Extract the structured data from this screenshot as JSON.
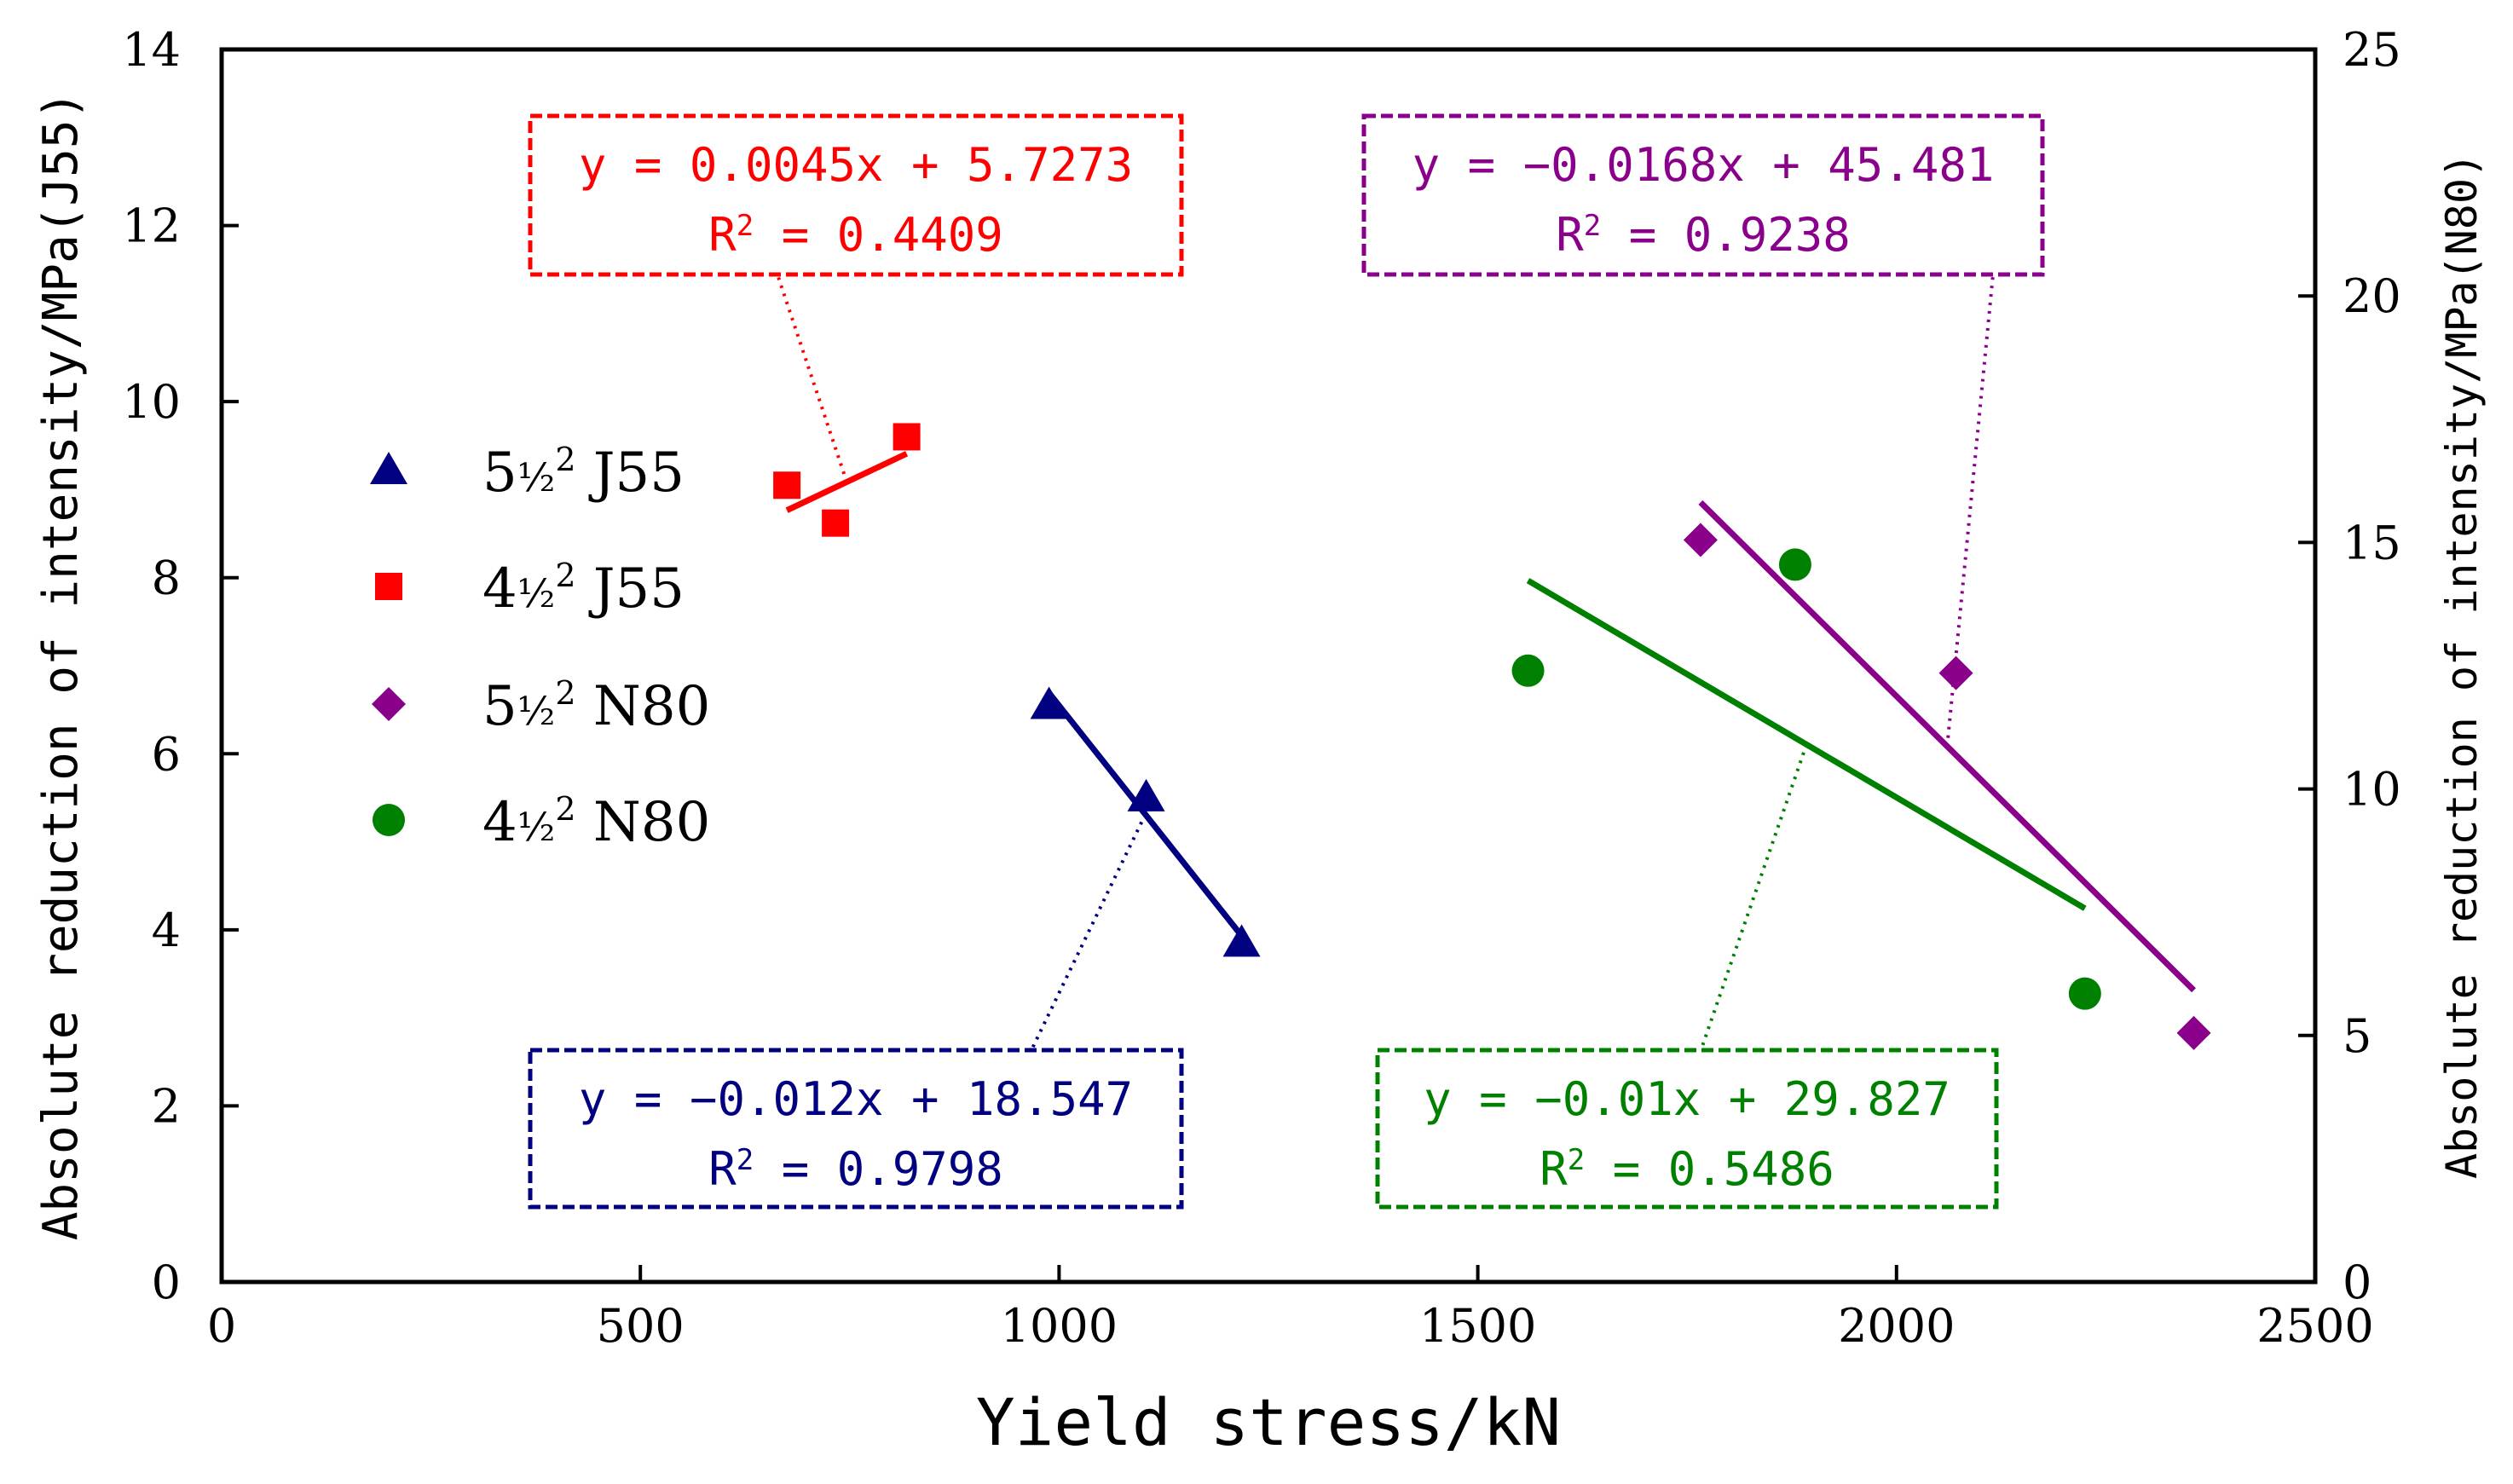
{
  "chart_data": {
    "type": "scatter",
    "xlabel": "Yield stress/kN",
    "ylabel_left": "Absolute reduction of intensity/MPa(J55)",
    "ylabel_right": "Absolute reduction of intensity/MPa(N80)",
    "xlim": [
      0,
      2500
    ],
    "ylim_left": [
      0,
      14
    ],
    "ylim_right": [
      0,
      25
    ],
    "x_ticks": [
      "0",
      "500",
      "1000",
      "1500",
      "2000",
      "2500"
    ],
    "y_left_ticks": [
      "0",
      "2",
      "4",
      "6",
      "8",
      "10",
      "12",
      "14"
    ],
    "y_right_ticks": [
      "0",
      "5",
      "10",
      "15",
      "20",
      "25"
    ],
    "grid": false,
    "legend_position": "left",
    "series": [
      {
        "name": "5½² J55",
        "label_main": "5",
        "label_frac": "½",
        "label_sup": "2",
        "label_tail": " J55",
        "marker": "triangle",
        "color": "#000080",
        "axis": "left",
        "points": [
          [
            988,
            6.55
          ],
          [
            1104,
            5.5
          ],
          [
            1218,
            3.85
          ]
        ],
        "trend": {
          "x": [
            988,
            1218
          ]
        },
        "equation": "y = −0.012x + 18.547",
        "r2_prefix": "R",
        "r2_sup": "2",
        "r2_value": " = 0.9798"
      },
      {
        "name": "4½² J55",
        "label_main": "4",
        "label_frac": "½",
        "label_sup": "2",
        "label_tail": " J55",
        "marker": "square",
        "color": "#ff0000",
        "axis": "left",
        "points": [
          [
            675,
            9.05
          ],
          [
            733,
            8.62
          ],
          [
            818,
            9.6
          ]
        ],
        "trend": {
          "x": [
            675,
            818
          ]
        },
        "equation": "y = 0.0045x + 5.7273",
        "r2_prefix": "R",
        "r2_sup": "2",
        "r2_value": " = 0.4409"
      },
      {
        "name": "5½² N80",
        "label_main": "5",
        "label_frac": "½",
        "label_sup": "2",
        "label_tail": " N80",
        "marker": "diamond",
        "color": "#8b008b",
        "axis": "right",
        "points": [
          [
            1766,
            15.05
          ],
          [
            2071,
            12.35
          ],
          [
            2355,
            5.05
          ]
        ],
        "trend": {
          "x": [
            1766,
            2355
          ]
        },
        "equation": "y = −0.0168x + 45.481",
        "r2_prefix": "R",
        "r2_sup": "2",
        "r2_value": " = 0.9238"
      },
      {
        "name": "4½² N80",
        "label_main": "4",
        "label_frac": "½",
        "label_sup": "2",
        "label_tail": " N80",
        "marker": "circle",
        "color": "#008000",
        "axis": "right",
        "points": [
          [
            1560,
            12.4
          ],
          [
            1879,
            14.55
          ],
          [
            2225,
            5.85
          ]
        ],
        "trend": {
          "x": [
            1560,
            2225
          ]
        },
        "equation": "y = −0.01x + 29.827",
        "r2_prefix": "R",
        "r2_sup": "2",
        "r2_value": " = 0.5486"
      }
    ]
  }
}
